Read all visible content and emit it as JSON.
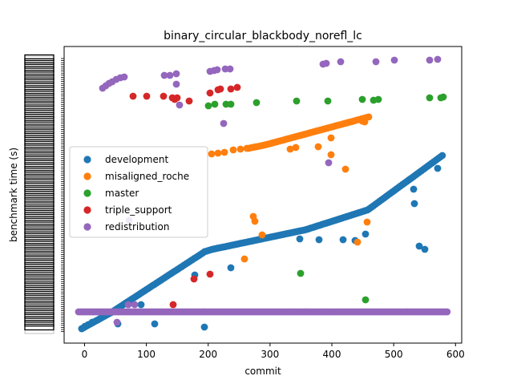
{
  "chart_data": {
    "type": "scatter",
    "title": "binary_circular_blackbody_norefl_lc",
    "xlabel": "commit",
    "ylabel": "benchmark time (s)",
    "xlim": [
      -33,
      610
    ],
    "ylim": [
      0,
      100
    ],
    "xticks": [
      0,
      100,
      200,
      300,
      400,
      500,
      600
    ],
    "legend_position": "center-left",
    "grid": false,
    "series": [
      {
        "name": "development",
        "color": "#1f77b4"
      },
      {
        "name": "misaligned_roche",
        "color": "#ff7f0e"
      },
      {
        "name": "master",
        "color": "#2ca02c"
      },
      {
        "name": "triple_support",
        "color": "#d62728"
      },
      {
        "name": "redistribution",
        "color": "#9467bd"
      }
    ]
  }
}
